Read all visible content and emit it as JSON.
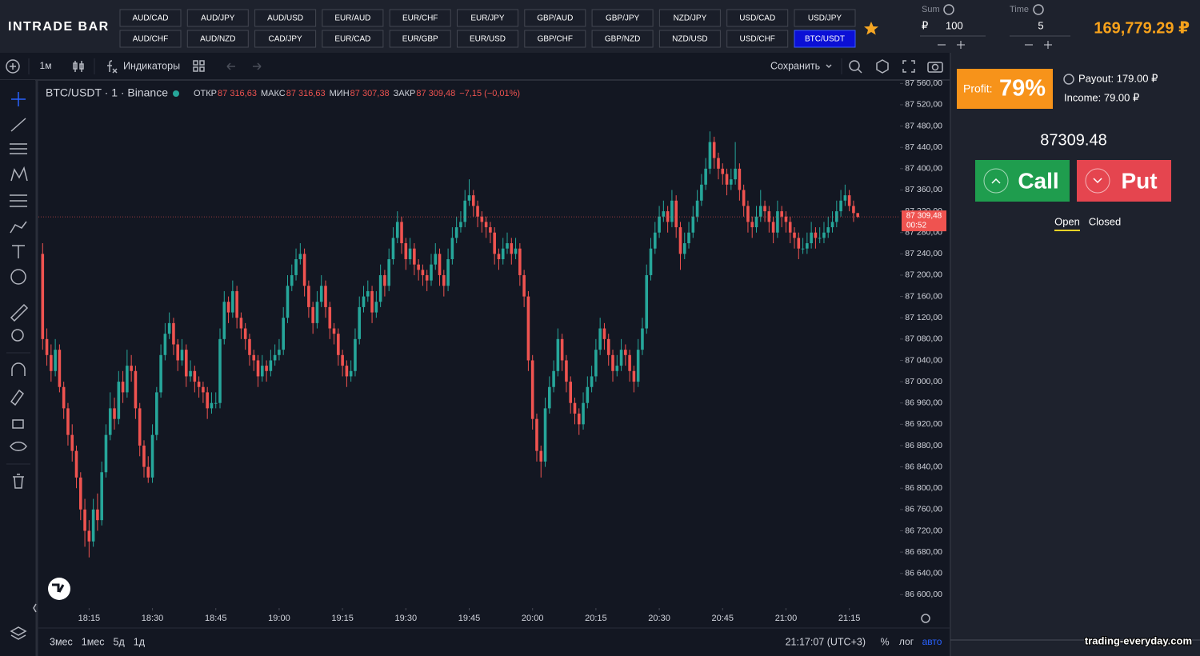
{
  "header": {
    "logo": "INTRADE BAR",
    "pairs": [
      "AUD/CAD",
      "AUD/JPY",
      "AUD/USD",
      "EUR/AUD",
      "EUR/CHF",
      "EUR/JPY",
      "GBP/AUD",
      "GBP/JPY",
      "NZD/JPY",
      "USD/CAD",
      "USD/JPY",
      "AUD/CHF",
      "AUD/NZD",
      "CAD/JPY",
      "EUR/CAD",
      "EUR/GBP",
      "EUR/USD",
      "GBP/CHF",
      "GBP/NZD",
      "NZD/USD",
      "USD/CHF",
      "BTC/USDT"
    ],
    "active_pair": "BTC/USDT",
    "sum_label": "Sum",
    "currency": "₽",
    "sum": 100,
    "time_label": "Time",
    "time": 5,
    "balance": "169,779.29 ₽"
  },
  "toolbar": {
    "interval": "1м",
    "indicators": "Индикаторы",
    "save": "Сохранить"
  },
  "chart_data": {
    "type": "candlestick",
    "symbol": "BTC/USDT · 1 · Binance",
    "legend": [
      {
        "label": "ОТКР",
        "value": "87 316,63"
      },
      {
        "label": "МАКС",
        "value": "87 316,63"
      },
      {
        "label": "МИН",
        "value": "87 307,38"
      },
      {
        "label": "ЗАКР",
        "value": "87 309,48"
      }
    ],
    "change": "−7,15 (−0,01%)",
    "up_color": "#26a69a",
    "down_color": "#ef5350",
    "last_price_label": "87 309,48",
    "countdown": "00:52",
    "xlim": [
      -1,
      203
    ],
    "ylim": [
      86575,
      87565
    ],
    "grid": false,
    "xticks": [
      {
        "value": 11,
        "label": "18:15"
      },
      {
        "value": 26,
        "label": "18:30"
      },
      {
        "value": 41,
        "label": "18:45"
      },
      {
        "value": 56,
        "label": "19:00"
      },
      {
        "value": 71,
        "label": "19:15"
      },
      {
        "value": 86,
        "label": "19:30"
      },
      {
        "value": 101,
        "label": "19:45"
      },
      {
        "value": 116,
        "label": "20:00"
      },
      {
        "value": 131,
        "label": "20:15"
      },
      {
        "value": 146,
        "label": "20:30"
      },
      {
        "value": 161,
        "label": "20:45"
      },
      {
        "value": 176,
        "label": "21:00"
      },
      {
        "value": 191,
        "label": "21:15"
      }
    ],
    "yticks": [
      {
        "value": 87560,
        "label": "87 560,00"
      },
      {
        "value": 87520,
        "label": "87 520,00"
      },
      {
        "value": 87480,
        "label": "87 480,00"
      },
      {
        "value": 87440,
        "label": "87 440,00"
      },
      {
        "value": 87400,
        "label": "87 400,00"
      },
      {
        "value": 87360,
        "label": "87 360,00"
      },
      {
        "value": 87320,
        "label": "87 320,00"
      },
      {
        "value": 87280,
        "label": "87 280,00"
      },
      {
        "value": 87240,
        "label": "87 240,00"
      },
      {
        "value": 87200,
        "label": "87 200,00"
      },
      {
        "value": 87160,
        "label": "87 160,00"
      },
      {
        "value": 87120,
        "label": "87 120,00"
      },
      {
        "value": 87080,
        "label": "87 080,00"
      },
      {
        "value": 87040,
        "label": "87 040,00"
      },
      {
        "value": 87000,
        "label": "87 000,00"
      },
      {
        "value": 86960,
        "label": "86 960,00"
      },
      {
        "value": 86920,
        "label": "86 920,00"
      },
      {
        "value": 86880,
        "label": "86 880,00"
      },
      {
        "value": 86840,
        "label": "86 840,00"
      },
      {
        "value": 86800,
        "label": "86 800,00"
      },
      {
        "value": 86760,
        "label": "86 760,00"
      },
      {
        "value": 86720,
        "label": "86 720,00"
      },
      {
        "value": 86680,
        "label": "86 680,00"
      },
      {
        "value": 86640,
        "label": "86 640,00"
      },
      {
        "value": 86600,
        "label": "86 600,00"
      }
    ],
    "candles": [
      [
        87240,
        87260,
        87060,
        87080
      ],
      [
        87080,
        87100,
        87030,
        87050
      ],
      [
        87050,
        87070,
        87000,
        87020
      ],
      [
        87020,
        87080,
        87010,
        87060
      ],
      [
        87060,
        87070,
        86980,
        86990
      ],
      [
        86990,
        87000,
        86930,
        86950
      ],
      [
        86950,
        86960,
        86880,
        86900
      ],
      [
        86900,
        86920,
        86850,
        86870
      ],
      [
        86870,
        86880,
        86800,
        86820
      ],
      [
        86820,
        86830,
        86740,
        86760
      ],
      [
        86760,
        86780,
        86690,
        86720
      ],
      [
        86720,
        86740,
        86670,
        86700
      ],
      [
        86700,
        86780,
        86690,
        86760
      ],
      [
        86760,
        86790,
        86720,
        86740
      ],
      [
        86740,
        86850,
        86730,
        86830
      ],
      [
        86830,
        86920,
        86820,
        86900
      ],
      [
        86900,
        86980,
        86890,
        86950
      ],
      [
        86950,
        86970,
        86910,
        86930
      ],
      [
        86930,
        87020,
        86920,
        87000
      ],
      [
        87000,
        87020,
        86960,
        86980
      ],
      [
        86980,
        87060,
        86970,
        87030
      ],
      [
        87030,
        87050,
        87000,
        87020
      ],
      [
        87020,
        87030,
        86930,
        86950
      ],
      [
        86950,
        86960,
        86860,
        86880
      ],
      [
        86880,
        86890,
        86820,
        86840
      ],
      [
        86840,
        86860,
        86810,
        86820
      ],
      [
        86820,
        86920,
        86810,
        86900
      ],
      [
        86900,
        86990,
        86890,
        86980
      ],
      [
        86980,
        87070,
        86970,
        87050
      ],
      [
        87050,
        87110,
        87040,
        87090
      ],
      [
        87090,
        87130,
        87080,
        87110
      ],
      [
        87110,
        87120,
        87050,
        87070
      ],
      [
        87070,
        87080,
        87020,
        87040
      ],
      [
        87040,
        87080,
        87030,
        87060
      ],
      [
        87060,
        87070,
        86990,
        87010
      ],
      [
        87010,
        87040,
        87000,
        87020
      ],
      [
        87020,
        87030,
        86980,
        87000
      ],
      [
        87000,
        87010,
        86970,
        86990
      ],
      [
        86990,
        87000,
        86960,
        86980
      ],
      [
        86980,
        86990,
        86930,
        86950
      ],
      [
        86950,
        86980,
        86940,
        86960
      ],
      [
        86960,
        86980,
        86950,
        86960
      ],
      [
        86960,
        87100,
        86950,
        87080
      ],
      [
        87080,
        87170,
        87070,
        87150
      ],
      [
        87150,
        87160,
        87110,
        87130
      ],
      [
        87130,
        87190,
        87120,
        87170
      ],
      [
        87170,
        87180,
        87100,
        87120
      ],
      [
        87120,
        87130,
        87080,
        87100
      ],
      [
        87100,
        87110,
        87060,
        87080
      ],
      [
        87080,
        87090,
        87030,
        87050
      ],
      [
        87050,
        87060,
        87020,
        87040
      ],
      [
        87040,
        87050,
        86990,
        87010
      ],
      [
        87010,
        87050,
        87000,
        87030
      ],
      [
        87030,
        87040,
        87000,
        87020
      ],
      [
        87020,
        87060,
        87010,
        87040
      ],
      [
        87040,
        87070,
        87030,
        87050
      ],
      [
        87050,
        87080,
        87040,
        87060
      ],
      [
        87060,
        87140,
        87050,
        87120
      ],
      [
        87120,
        87200,
        87110,
        87180
      ],
      [
        87180,
        87220,
        87170,
        87200
      ],
      [
        87200,
        87250,
        87190,
        87230
      ],
      [
        87230,
        87260,
        87220,
        87240
      ],
      [
        87240,
        87250,
        87160,
        87180
      ],
      [
        87180,
        87190,
        87120,
        87140
      ],
      [
        87140,
        87150,
        87090,
        87110
      ],
      [
        87110,
        87170,
        87100,
        87150
      ],
      [
        87150,
        87200,
        87140,
        87180
      ],
      [
        87180,
        87190,
        87120,
        87140
      ],
      [
        87140,
        87150,
        87080,
        87100
      ],
      [
        87100,
        87110,
        87070,
        87090
      ],
      [
        87090,
        87100,
        87030,
        87050
      ],
      [
        87050,
        87060,
        87010,
        87030
      ],
      [
        87030,
        87040,
        86990,
        87010
      ],
      [
        87010,
        87040,
        87000,
        87020
      ],
      [
        87020,
        87100,
        87010,
        87080
      ],
      [
        87080,
        87160,
        87070,
        87140
      ],
      [
        87140,
        87180,
        87130,
        87160
      ],
      [
        87160,
        87190,
        87150,
        87170
      ],
      [
        87170,
        87180,
        87110,
        87130
      ],
      [
        87130,
        87170,
        87120,
        87150
      ],
      [
        87150,
        87220,
        87140,
        87200
      ],
      [
        87200,
        87210,
        87160,
        87180
      ],
      [
        87180,
        87250,
        87170,
        87230
      ],
      [
        87230,
        87290,
        87220,
        87270
      ],
      [
        87270,
        87320,
        87260,
        87300
      ],
      [
        87300,
        87310,
        87240,
        87260
      ],
      [
        87260,
        87270,
        87210,
        87230
      ],
      [
        87230,
        87270,
        87220,
        87250
      ],
      [
        87250,
        87260,
        87200,
        87220
      ],
      [
        87220,
        87230,
        87190,
        87210
      ],
      [
        87210,
        87220,
        87180,
        87200
      ],
      [
        87200,
        87210,
        87170,
        87190
      ],
      [
        87190,
        87240,
        87180,
        87220
      ],
      [
        87220,
        87260,
        87210,
        87240
      ],
      [
        87240,
        87250,
        87180,
        87200
      ],
      [
        87200,
        87210,
        87160,
        87180
      ],
      [
        87180,
        87250,
        87170,
        87230
      ],
      [
        87230,
        87290,
        87220,
        87270
      ],
      [
        87270,
        87310,
        87260,
        87290
      ],
      [
        87290,
        87320,
        87280,
        87300
      ],
      [
        87300,
        87360,
        87290,
        87340
      ],
      [
        87340,
        87380,
        87330,
        87350
      ],
      [
        87350,
        87360,
        87310,
        87330
      ],
      [
        87330,
        87340,
        87290,
        87310
      ],
      [
        87310,
        87320,
        87280,
        87300
      ],
      [
        87300,
        87310,
        87270,
        87290
      ],
      [
        87290,
        87300,
        87260,
        87280
      ],
      [
        87280,
        87290,
        87220,
        87240
      ],
      [
        87240,
        87250,
        87210,
        87230
      ],
      [
        87230,
        87270,
        87220,
        87250
      ],
      [
        87250,
        87280,
        87240,
        87260
      ],
      [
        87260,
        87270,
        87220,
        87240
      ],
      [
        87240,
        87270,
        87230,
        87250
      ],
      [
        87250,
        87260,
        87180,
        87200
      ],
      [
        87200,
        87210,
        87140,
        87160
      ],
      [
        87160,
        87170,
        87020,
        87040
      ],
      [
        87040,
        87050,
        86910,
        86930
      ],
      [
        86930,
        86940,
        86850,
        86870
      ],
      [
        86870,
        86880,
        86820,
        86850
      ],
      [
        86850,
        86970,
        86840,
        86950
      ],
      [
        86950,
        87010,
        86940,
        86990
      ],
      [
        86990,
        87040,
        86980,
        87020
      ],
      [
        87020,
        87100,
        87010,
        87080
      ],
      [
        87080,
        87090,
        87020,
        87040
      ],
      [
        87040,
        87050,
        86980,
        87000
      ],
      [
        87000,
        87010,
        86940,
        86960
      ],
      [
        86960,
        86970,
        86920,
        86940
      ],
      [
        86940,
        86950,
        86900,
        86920
      ],
      [
        86920,
        86980,
        86910,
        86960
      ],
      [
        86960,
        87010,
        86950,
        86990
      ],
      [
        86990,
        87030,
        86980,
        87010
      ],
      [
        87010,
        87080,
        87000,
        87060
      ],
      [
        87060,
        87120,
        87050,
        87100
      ],
      [
        87100,
        87110,
        87060,
        87080
      ],
      [
        87080,
        87090,
        87030,
        87050
      ],
      [
        87050,
        87060,
        87000,
        87020
      ],
      [
        87020,
        87050,
        87010,
        87030
      ],
      [
        87030,
        87080,
        87020,
        87060
      ],
      [
        87060,
        87070,
        87030,
        87050
      ],
      [
        87050,
        87060,
        87000,
        87020
      ],
      [
        87020,
        87030,
        86980,
        87000
      ],
      [
        87000,
        87080,
        86990,
        87060
      ],
      [
        87060,
        87120,
        87050,
        87100
      ],
      [
        87100,
        87220,
        87090,
        87200
      ],
      [
        87200,
        87270,
        87190,
        87250
      ],
      [
        87250,
        87300,
        87240,
        87280
      ],
      [
        87280,
        87330,
        87270,
        87310
      ],
      [
        87310,
        87340,
        87300,
        87320
      ],
      [
        87320,
        87330,
        87280,
        87300
      ],
      [
        87300,
        87360,
        87290,
        87340
      ],
      [
        87340,
        87350,
        87270,
        87290
      ],
      [
        87290,
        87300,
        87210,
        87240
      ],
      [
        87240,
        87280,
        87230,
        87260
      ],
      [
        87260,
        87300,
        87250,
        87280
      ],
      [
        87280,
        87330,
        87270,
        87310
      ],
      [
        87310,
        87360,
        87300,
        87340
      ],
      [
        87340,
        87390,
        87330,
        87370
      ],
      [
        87370,
        87420,
        87360,
        87400
      ],
      [
        87400,
        87470,
        87390,
        87450
      ],
      [
        87450,
        87460,
        87400,
        87420
      ],
      [
        87420,
        87430,
        87380,
        87400
      ],
      [
        87400,
        87410,
        87370,
        87390
      ],
      [
        87390,
        87400,
        87350,
        87370
      ],
      [
        87370,
        87400,
        87360,
        87380
      ],
      [
        87380,
        87450,
        87370,
        87400
      ],
      [
        87400,
        87410,
        87340,
        87360
      ],
      [
        87360,
        87370,
        87310,
        87330
      ],
      [
        87330,
        87340,
        87280,
        87300
      ],
      [
        87300,
        87310,
        87270,
        87290
      ],
      [
        87290,
        87330,
        87280,
        87310
      ],
      [
        87310,
        87360,
        87300,
        87330
      ],
      [
        87330,
        87340,
        87300,
        87320
      ],
      [
        87320,
        87330,
        87280,
        87300
      ],
      [
        87300,
        87310,
        87260,
        87280
      ],
      [
        87280,
        87340,
        87270,
        87320
      ],
      [
        87320,
        87330,
        87290,
        87310
      ],
      [
        87310,
        87320,
        87280,
        87300
      ],
      [
        87300,
        87310,
        87260,
        87280
      ],
      [
        87280,
        87290,
        87250,
        87270
      ],
      [
        87270,
        87280,
        87230,
        87250
      ],
      [
        87250,
        87270,
        87240,
        87250
      ],
      [
        87250,
        87280,
        87240,
        87260
      ],
      [
        87260,
        87300,
        87250,
        87280
      ],
      [
        87280,
        87290,
        87250,
        87270
      ],
      [
        87270,
        87290,
        87260,
        87270
      ],
      [
        87270,
        87300,
        87260,
        87280
      ],
      [
        87280,
        87310,
        87270,
        87290
      ],
      [
        87290,
        87320,
        87280,
        87300
      ],
      [
        87300,
        87340,
        87290,
        87320
      ],
      [
        87320,
        87360,
        87310,
        87340
      ],
      [
        87340,
        87370,
        87330,
        87350
      ],
      [
        87350,
        87360,
        87320,
        87330
      ],
      [
        87330,
        87340,
        87300,
        87316.63
      ],
      [
        87316.63,
        87316.63,
        87307.38,
        87309.48
      ]
    ]
  },
  "bottom": {
    "ranges": [
      "3мес",
      "1мес",
      "5д",
      "1д"
    ],
    "clock": "21:17:07 (UTC+3)",
    "percent": "%",
    "log": "лог",
    "auto": "авто"
  },
  "trade_panel": {
    "profit_label": "Profit:",
    "profit": "79%",
    "payout": "Payout: 179.00 ₽",
    "income": "Income: 79.00 ₽",
    "price": "87309.48",
    "call": "Call",
    "put": "Put",
    "tabs": [
      "Open",
      "Closed"
    ]
  },
  "watermark": "trading-everyday.com"
}
